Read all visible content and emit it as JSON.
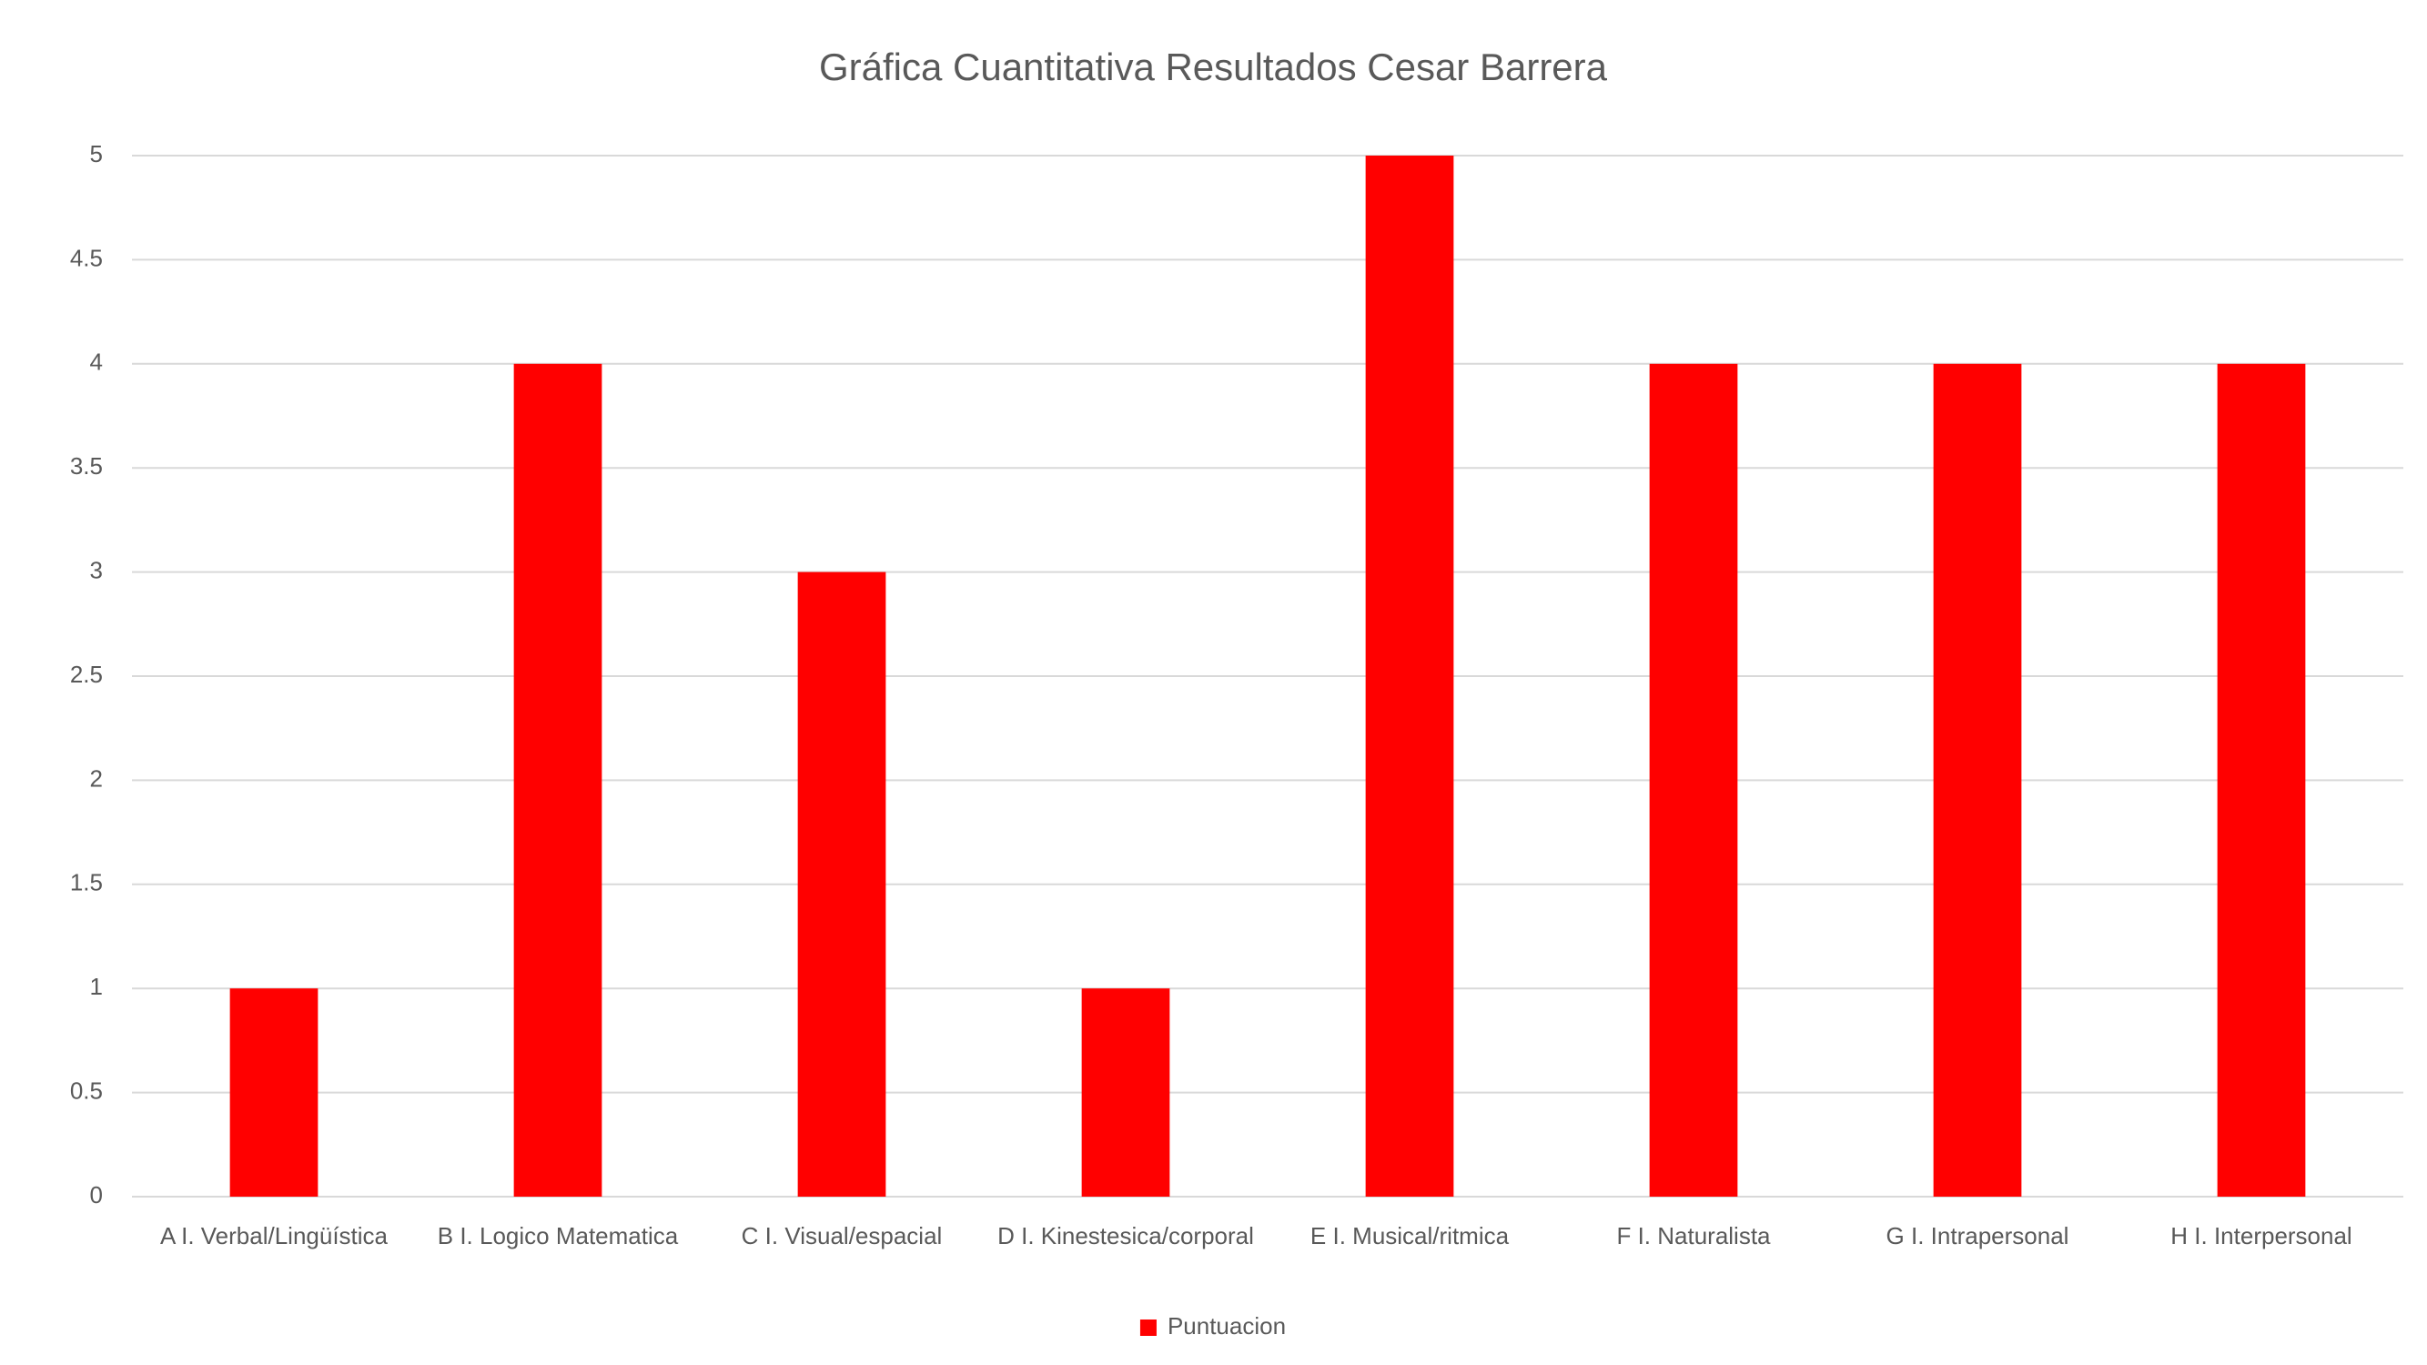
{
  "chart_data": {
    "type": "bar",
    "title": "Gráfica Cuantitativa Resultados Cesar Barrera",
    "categories": [
      "A I. Verbal/Lingüística",
      "B I. Logico Matematica",
      "C I. Visual/espacial",
      "D I. Kinestesica/corporal",
      "E I. Musical/ritmica",
      "F I. Naturalista",
      "G I. Intrapersonal",
      "H I. Interpersonal"
    ],
    "series": [
      {
        "name": "Puntuacion",
        "color": "#ff0000",
        "values": [
          1,
          4,
          3,
          1,
          5,
          4,
          4,
          4
        ]
      }
    ],
    "ylim": [
      0,
      5
    ],
    "yticks": [
      0,
      0.5,
      1,
      1.5,
      2,
      2.5,
      3,
      3.5,
      4,
      4.5,
      5
    ],
    "grid": true,
    "legend": "bottom"
  }
}
